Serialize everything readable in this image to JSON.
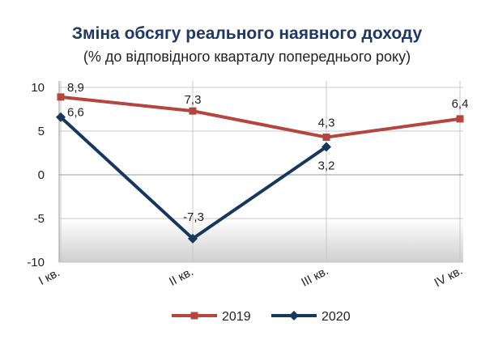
{
  "chart_data": {
    "type": "line",
    "title": "Зміна обсягу реального наявного доходу",
    "subtitle": "(% до відповідного кварталу попереднього року)",
    "categories": [
      "I кв.",
      "II кв.",
      "III кв.",
      "IV кв."
    ],
    "ylim": [
      -10,
      10
    ],
    "yticks": [
      10,
      5,
      0,
      -5,
      -10
    ],
    "grid": true,
    "legend_position": "bottom",
    "series": [
      {
        "name": "2019",
        "color": "#b4453f",
        "marker": "square",
        "values": [
          8.9,
          7.3,
          4.3,
          6.4
        ],
        "labels": [
          "8,9",
          "7,3",
          "4,3",
          "6,4"
        ]
      },
      {
        "name": "2020",
        "color": "#17375e",
        "marker": "diamond",
        "values": [
          6.6,
          -7.3,
          3.2,
          null
        ],
        "labels": [
          "6,6",
          "-7,3",
          "3,2",
          null
        ]
      }
    ]
  }
}
